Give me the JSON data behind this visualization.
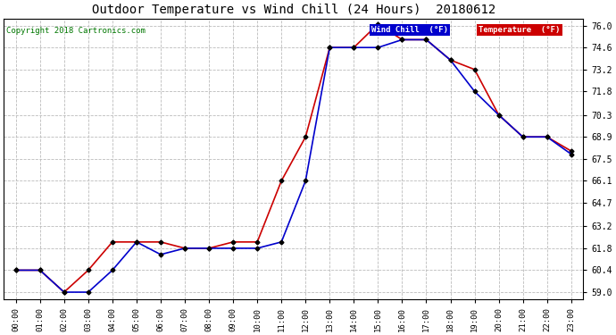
{
  "title": "Outdoor Temperature vs Wind Chill (24 Hours)  20180612",
  "copyright": "Copyright 2018 Cartronics.com",
  "background_color": "#ffffff",
  "grid_color": "#bbbbbb",
  "x_labels": [
    "00:00",
    "01:00",
    "02:00",
    "03:00",
    "04:00",
    "05:00",
    "06:00",
    "07:00",
    "08:00",
    "09:00",
    "10:00",
    "11:00",
    "12:00",
    "13:00",
    "14:00",
    "15:00",
    "16:00",
    "17:00",
    "18:00",
    "19:00",
    "20:00",
    "21:00",
    "22:00",
    "23:00"
  ],
  "y_ticks": [
    59.0,
    60.4,
    61.8,
    63.2,
    64.7,
    66.1,
    67.5,
    68.9,
    70.3,
    71.8,
    73.2,
    74.6,
    76.0
  ],
  "ylim": [
    58.55,
    76.45
  ],
  "temperature": [
    60.4,
    60.4,
    59.0,
    60.4,
    62.2,
    62.2,
    62.2,
    61.8,
    61.8,
    62.2,
    62.2,
    66.1,
    68.9,
    74.6,
    74.6,
    76.1,
    75.1,
    75.1,
    73.8,
    73.2,
    70.3,
    68.9,
    68.9,
    68.0
  ],
  "wind_chill": [
    60.4,
    60.4,
    59.0,
    59.0,
    60.4,
    62.2,
    61.4,
    61.8,
    61.8,
    61.8,
    61.8,
    62.2,
    66.1,
    74.6,
    74.6,
    74.6,
    75.1,
    75.1,
    73.8,
    71.8,
    70.3,
    68.9,
    68.9,
    67.8
  ],
  "temp_color": "#cc0000",
  "wind_color": "#0000cc",
  "legend_wind_bg": "#0000cc",
  "legend_temp_bg": "#cc0000",
  "legend_wind_text": "Wind Chill  (°F)",
  "legend_temp_text": "Temperature  (°F)"
}
